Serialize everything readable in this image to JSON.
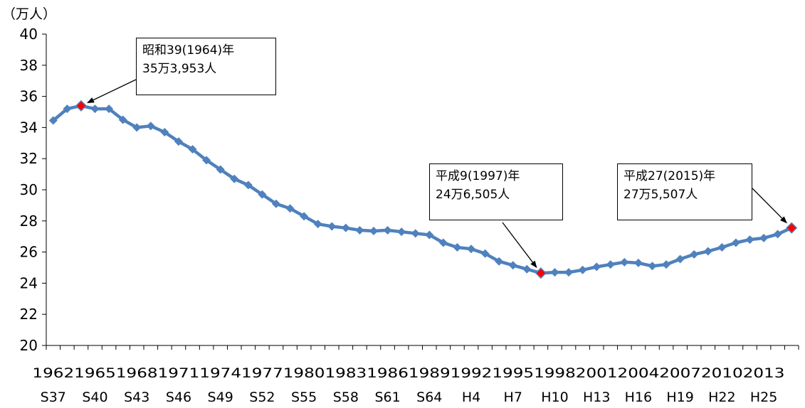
{
  "chart_data": {
    "type": "line",
    "y_unit": "（万人）",
    "ylim": [
      20,
      40
    ],
    "yticks": [
      20,
      22,
      24,
      26,
      28,
      30,
      32,
      34,
      36,
      38,
      40
    ],
    "x_year_labels": [
      "1962",
      "1965",
      "1968",
      "1971",
      "1974",
      "1977",
      "1980",
      "1983",
      "1986",
      "1989",
      "1992",
      "1995",
      "1998",
      "2001",
      "2004",
      "2007",
      "2010",
      "2013"
    ],
    "x_era_labels": [
      "S37",
      "S40",
      "S43",
      "S46",
      "S49",
      "S52",
      "S55",
      "S58",
      "S61",
      "S64",
      "H4",
      "H7",
      "H10",
      "H13",
      "H16",
      "H19",
      "H22",
      "H25"
    ],
    "series": [
      {
        "color": "#4f81bd",
        "x": [
          1962,
          1963,
          1964,
          1965,
          1966,
          1967,
          1968,
          1969,
          1970,
          1971,
          1972,
          1973,
          1974,
          1975,
          1976,
          1977,
          1978,
          1979,
          1980,
          1981,
          1982,
          1983,
          1984,
          1985,
          1986,
          1987,
          1988,
          1989,
          1990,
          1991,
          1992,
          1993,
          1994,
          1995,
          1996,
          1997,
          1998,
          1999,
          2000,
          2001,
          2002,
          2003,
          2004,
          2005,
          2006,
          2007,
          2008,
          2009,
          2010,
          2011,
          2012,
          2013,
          2014,
          2015
        ],
        "values": [
          34.45,
          35.2,
          35.3953,
          35.2,
          35.2,
          34.5,
          34.0,
          34.1,
          33.7,
          33.1,
          32.6,
          31.9,
          31.3,
          30.7,
          30.3,
          29.7,
          29.1,
          28.8,
          28.3,
          27.8,
          27.65,
          27.55,
          27.4,
          27.35,
          27.4,
          27.3,
          27.2,
          27.1,
          26.6,
          26.3,
          26.2,
          25.9,
          25.4,
          25.15,
          24.9,
          24.6505,
          24.7,
          24.7,
          24.85,
          25.05,
          25.2,
          25.35,
          25.3,
          25.1,
          25.2,
          25.55,
          25.85,
          26.05,
          26.3,
          26.6,
          26.8,
          26.9,
          27.15,
          27.5507
        ]
      }
    ],
    "highlight_color": "#ff0000",
    "annotations": [
      {
        "year": 1964,
        "value": 35.3953,
        "line1": "昭和39(1964)年",
        "line2": "35万3,953人"
      },
      {
        "year": 1997,
        "value": 24.6505,
        "line1": "平成9(1997)年",
        "line2": "24万6,505人"
      },
      {
        "year": 2015,
        "value": 27.5507,
        "line1": "平成27(2015)年",
        "line2": "27万5,507人"
      }
    ]
  }
}
